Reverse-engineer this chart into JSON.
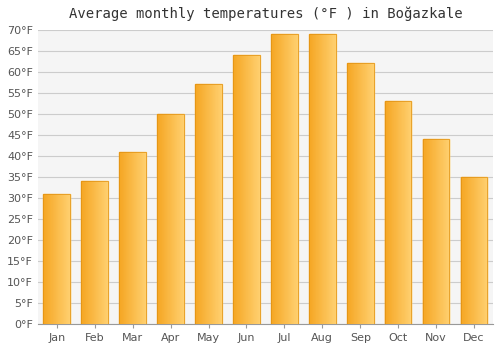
{
  "months": [
    "Jan",
    "Feb",
    "Mar",
    "Apr",
    "May",
    "Jun",
    "Jul",
    "Aug",
    "Sep",
    "Oct",
    "Nov",
    "Dec"
  ],
  "values": [
    31.0,
    34.0,
    41.0,
    50.0,
    57.0,
    64.0,
    69.0,
    69.0,
    62.0,
    53.0,
    44.0,
    35.0
  ],
  "bar_color_left": "#F5A623",
  "bar_color_right": "#FFD070",
  "title": "Average monthly temperatures (°F ) in Boğazkale",
  "ylim": [
    0,
    70
  ],
  "yticks": [
    0,
    5,
    10,
    15,
    20,
    25,
    30,
    35,
    40,
    45,
    50,
    55,
    60,
    65,
    70
  ],
  "ytick_labels": [
    "0°F",
    "5°F",
    "10°F",
    "15°F",
    "20°F",
    "25°F",
    "30°F",
    "35°F",
    "40°F",
    "45°F",
    "50°F",
    "55°F",
    "60°F",
    "65°F",
    "70°F"
  ],
  "background_color": "#ffffff",
  "plot_bg_color": "#f5f5f5",
  "grid_color": "#cccccc",
  "title_fontsize": 10,
  "tick_fontsize": 8,
  "bar_width": 0.7,
  "edge_color": "#E09010",
  "spine_color": "#999999"
}
